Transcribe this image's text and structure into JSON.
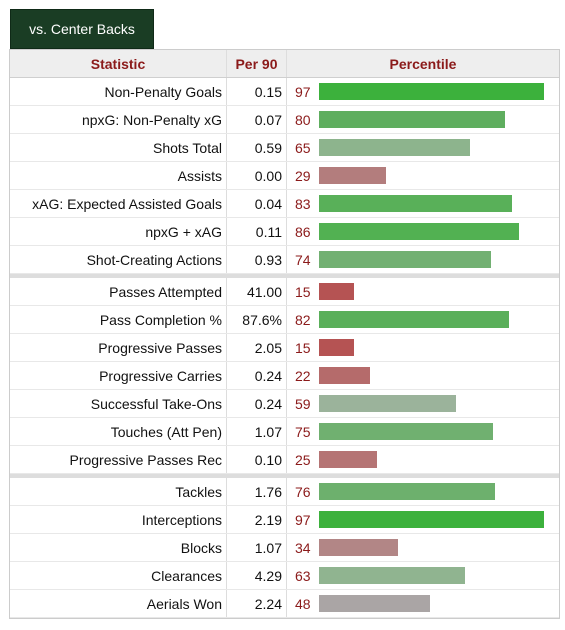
{
  "tab": {
    "label": "vs. Center Backs"
  },
  "headers": {
    "statistic": "Statistic",
    "per90": "Per 90",
    "percentile": "Percentile"
  },
  "groups": [
    [
      {
        "stat": "Non-Penalty Goals",
        "per90": "0.15",
        "percentile": 97,
        "color": "#3cb13c"
      },
      {
        "stat": "npxG: Non-Penalty xG",
        "per90": "0.07",
        "percentile": 80,
        "color": "#5fae5f"
      },
      {
        "stat": "Shots Total",
        "per90": "0.59",
        "percentile": 65,
        "color": "#8db48d"
      },
      {
        "stat": "Assists",
        "per90": "0.00",
        "percentile": 29,
        "color": "#b37d7d"
      },
      {
        "stat": "xAG: Expected Assisted Goals",
        "per90": "0.04",
        "percentile": 83,
        "color": "#59b059"
      },
      {
        "stat": "npxG + xAG",
        "per90": "0.11",
        "percentile": 86,
        "color": "#52b152"
      },
      {
        "stat": "Shot-Creating Actions",
        "per90": "0.93",
        "percentile": 74,
        "color": "#72b072"
      }
    ],
    [
      {
        "stat": "Passes Attempted",
        "per90": "41.00",
        "percentile": 15,
        "color": "#b55353"
      },
      {
        "stat": "Pass Completion %",
        "per90": "87.6%",
        "percentile": 82,
        "color": "#5aaf5a"
      },
      {
        "stat": "Progressive Passes",
        "per90": "2.05",
        "percentile": 15,
        "color": "#b55353"
      },
      {
        "stat": "Progressive Carries",
        "per90": "0.24",
        "percentile": 22,
        "color": "#b56b6b"
      },
      {
        "stat": "Successful Take-Ons",
        "per90": "0.24",
        "percentile": 59,
        "color": "#9bb39b"
      },
      {
        "stat": "Touches (Att Pen)",
        "per90": "1.07",
        "percentile": 75,
        "color": "#70b070"
      },
      {
        "stat": "Progressive Passes Rec",
        "per90": "0.10",
        "percentile": 25,
        "color": "#b57474"
      }
    ],
    [
      {
        "stat": "Tackles",
        "per90": "1.76",
        "percentile": 76,
        "color": "#6db06d"
      },
      {
        "stat": "Interceptions",
        "per90": "2.19",
        "percentile": 97,
        "color": "#3cb13c"
      },
      {
        "stat": "Blocks",
        "per90": "1.07",
        "percentile": 34,
        "color": "#b28686"
      },
      {
        "stat": "Clearances",
        "per90": "4.29",
        "percentile": 63,
        "color": "#90b490"
      },
      {
        "stat": "Aerials Won",
        "per90": "2.24",
        "percentile": 48,
        "color": "#aaa5a5"
      }
    ]
  ]
}
